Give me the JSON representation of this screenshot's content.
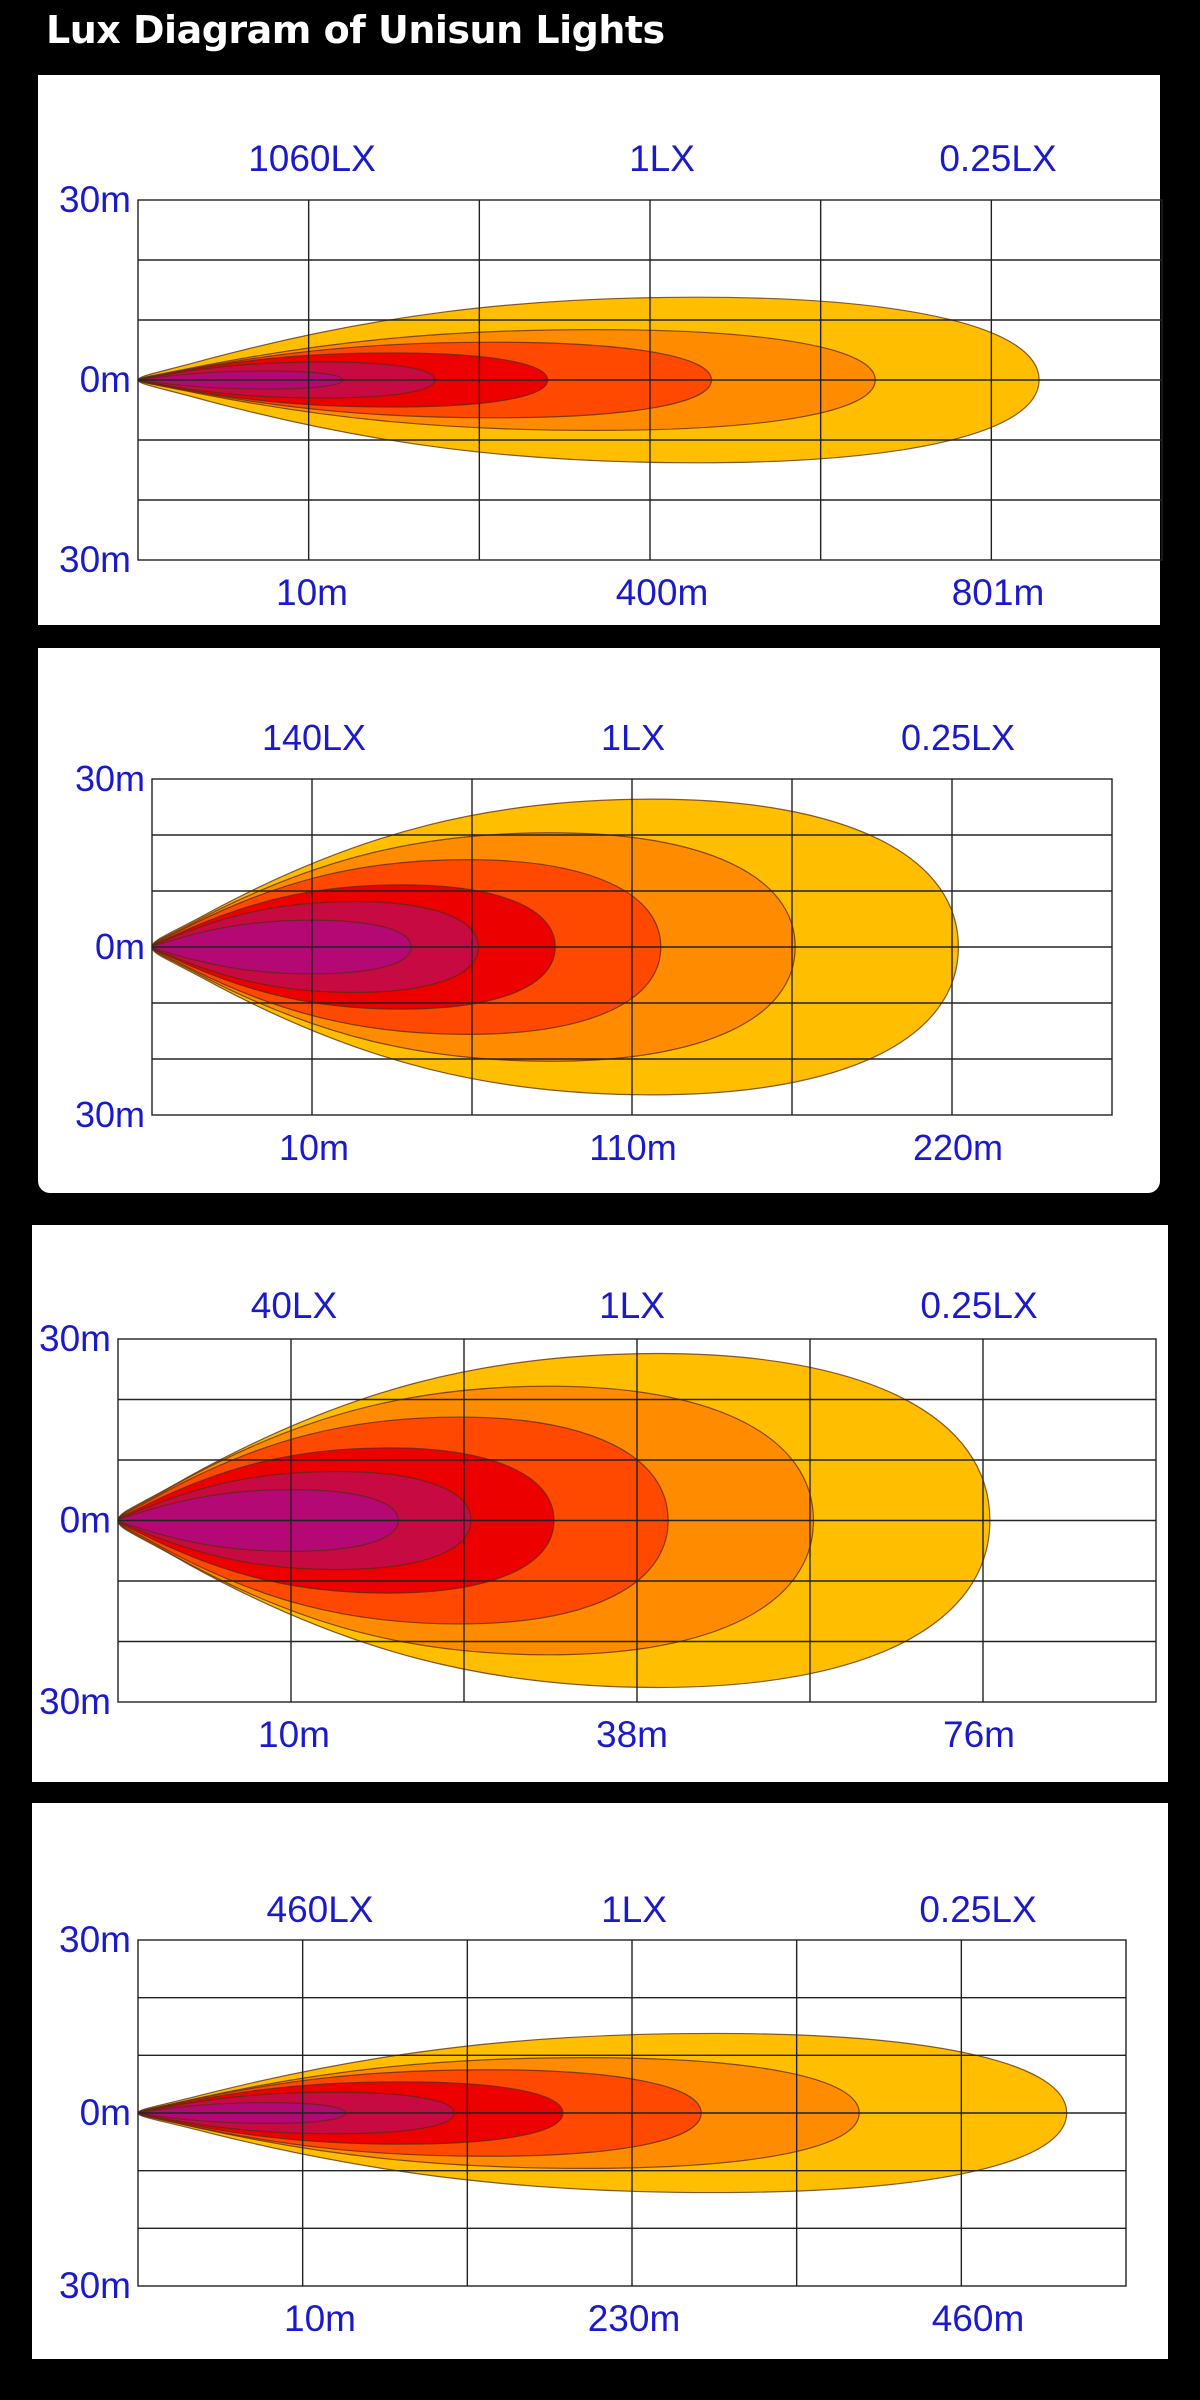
{
  "page": {
    "title": "Lux Diagram of Unisun Lights"
  },
  "zone_colors": [
    "#ffbe00",
    "#ff8c00",
    "#ff4800",
    "#ec0000",
    "#c70a42",
    "#b40874"
  ],
  "chart_data": [
    {
      "type": "contour",
      "title": "",
      "lux_labels": [
        "1060LX",
        "1LX",
        "0.25LX"
      ],
      "y_tick_labels": [
        "30m",
        "0m",
        "30m"
      ],
      "x_tick_labels": [
        "10m",
        "400m",
        "801m"
      ],
      "x_range": [
        0,
        801
      ],
      "y_range": [
        -30,
        30
      ],
      "zones": [
        {
          "reach": 0.88,
          "half_width": 0.46
        },
        {
          "reach": 0.72,
          "half_width": 0.28
        },
        {
          "reach": 0.56,
          "half_width": 0.21
        },
        {
          "reach": 0.4,
          "half_width": 0.15
        },
        {
          "reach": 0.29,
          "half_width": 0.1
        },
        {
          "reach": 0.2,
          "half_width": 0.05
        }
      ]
    },
    {
      "type": "contour",
      "title": "",
      "lux_labels": [
        "140LX",
        "1LX",
        "0.25LX"
      ],
      "y_tick_labels": [
        "30m",
        "0m",
        "30m"
      ],
      "x_tick_labels": [
        "10m",
        "110m",
        "220m"
      ],
      "x_range": [
        0,
        220
      ],
      "y_range": [
        -30,
        30
      ],
      "zones": [
        {
          "reach": 0.84,
          "half_width": 0.88
        },
        {
          "reach": 0.67,
          "half_width": 0.68
        },
        {
          "reach": 0.53,
          "half_width": 0.52
        },
        {
          "reach": 0.42,
          "half_width": 0.37
        },
        {
          "reach": 0.34,
          "half_width": 0.27
        },
        {
          "reach": 0.27,
          "half_width": 0.16
        }
      ]
    },
    {
      "type": "contour",
      "title": "",
      "lux_labels": [
        "40LX",
        "1LX",
        "0.25LX"
      ],
      "y_tick_labels": [
        "30m",
        "0m",
        "30m"
      ],
      "x_tick_labels": [
        "10m",
        "38m",
        "76m"
      ],
      "x_range": [
        0,
        76
      ],
      "y_range": [
        -30,
        30
      ],
      "zones": [
        {
          "reach": 0.84,
          "half_width": 0.92
        },
        {
          "reach": 0.67,
          "half_width": 0.74
        },
        {
          "reach": 0.53,
          "half_width": 0.57
        },
        {
          "reach": 0.42,
          "half_width": 0.4
        },
        {
          "reach": 0.34,
          "half_width": 0.27
        },
        {
          "reach": 0.27,
          "half_width": 0.17
        }
      ]
    },
    {
      "type": "contour",
      "title": "",
      "lux_labels": [
        "460LX",
        "1LX",
        "0.25LX"
      ],
      "y_tick_labels": [
        "30m",
        "0m",
        "30m"
      ],
      "x_tick_labels": [
        "10m",
        "230m",
        "460m"
      ],
      "x_range": [
        0,
        460
      ],
      "y_range": [
        -30,
        30
      ],
      "zones": [
        {
          "reach": 0.94,
          "half_width": 0.46
        },
        {
          "reach": 0.73,
          "half_width": 0.32
        },
        {
          "reach": 0.57,
          "half_width": 0.25
        },
        {
          "reach": 0.43,
          "half_width": 0.18
        },
        {
          "reach": 0.32,
          "half_width": 0.12
        },
        {
          "reach": 0.21,
          "half_width": 0.06
        }
      ]
    }
  ]
}
